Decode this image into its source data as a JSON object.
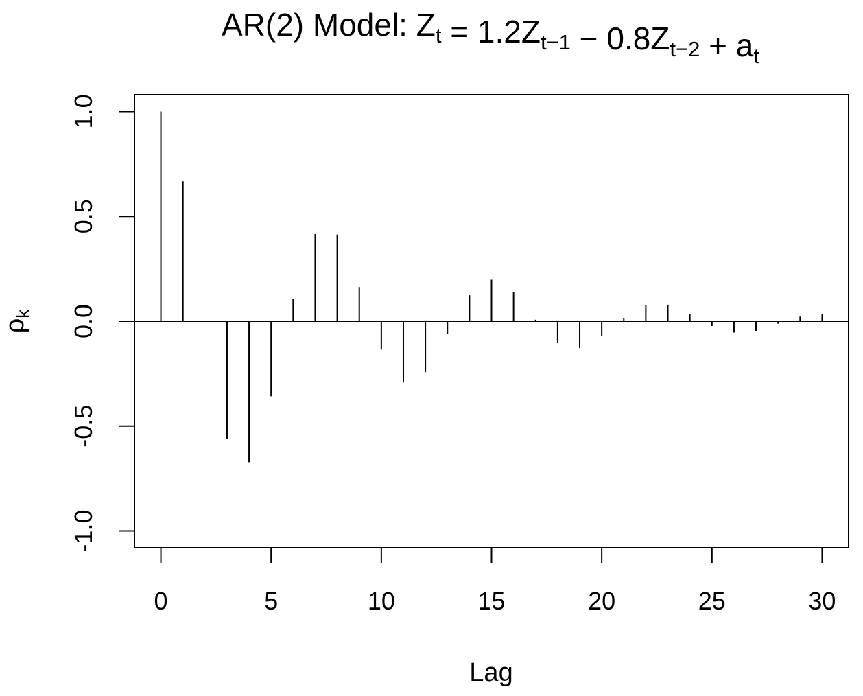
{
  "chart_data": {
    "type": "bar",
    "style": "vertical lines (ACF spike plot)",
    "title": {
      "prefix": "AR(2) Model:  ",
      "segments": [
        {
          "text": "Z",
          "sub": "t"
        },
        {
          "text": " = 1.2",
          "sub": ""
        },
        {
          "text": "Z",
          "sub": "t−1"
        },
        {
          "text": " − 0.8",
          "sub": ""
        },
        {
          "text": "Z",
          "sub": "t−2"
        },
        {
          "text": " + ",
          "sub": ""
        },
        {
          "text": "a",
          "sub": "t"
        }
      ]
    },
    "xlabel": "Lag",
    "ylabel": {
      "text": "ρ",
      "sub": "k"
    },
    "xlim": [
      -1.2,
      31.2
    ],
    "ylim": [
      -1.08,
      1.08
    ],
    "x_ticks": [
      0,
      5,
      10,
      15,
      20,
      25,
      30
    ],
    "x_tick_labels": [
      "0",
      "5",
      "10",
      "15",
      "20",
      "25",
      "30"
    ],
    "y_ticks": [
      -1.0,
      -0.5,
      0.0,
      0.5,
      1.0
    ],
    "y_tick_labels": [
      "-1.0",
      "-0.5",
      "0.0",
      "0.5",
      "1.0"
    ],
    "reference_line": 0,
    "grid": false,
    "x": [
      0,
      1,
      2,
      3,
      4,
      5,
      6,
      7,
      8,
      9,
      10,
      11,
      12,
      13,
      14,
      15,
      16,
      17,
      18,
      19,
      20,
      21,
      22,
      23,
      24,
      25,
      26,
      27,
      28,
      29,
      30
    ],
    "values": [
      1.0,
      0.667,
      -0.0,
      -0.56,
      -0.672,
      -0.358,
      0.108,
      0.416,
      0.413,
      0.163,
      -0.135,
      -0.292,
      -0.243,
      -0.059,
      0.124,
      0.198,
      0.138,
      0.007,
      -0.102,
      -0.128,
      -0.072,
      0.016,
      0.077,
      0.079,
      0.033,
      -0.023,
      -0.054,
      -0.046,
      -0.012,
      0.022,
      0.036
    ],
    "series": [
      {
        "name": "",
        "color": "#000000"
      }
    ]
  }
}
